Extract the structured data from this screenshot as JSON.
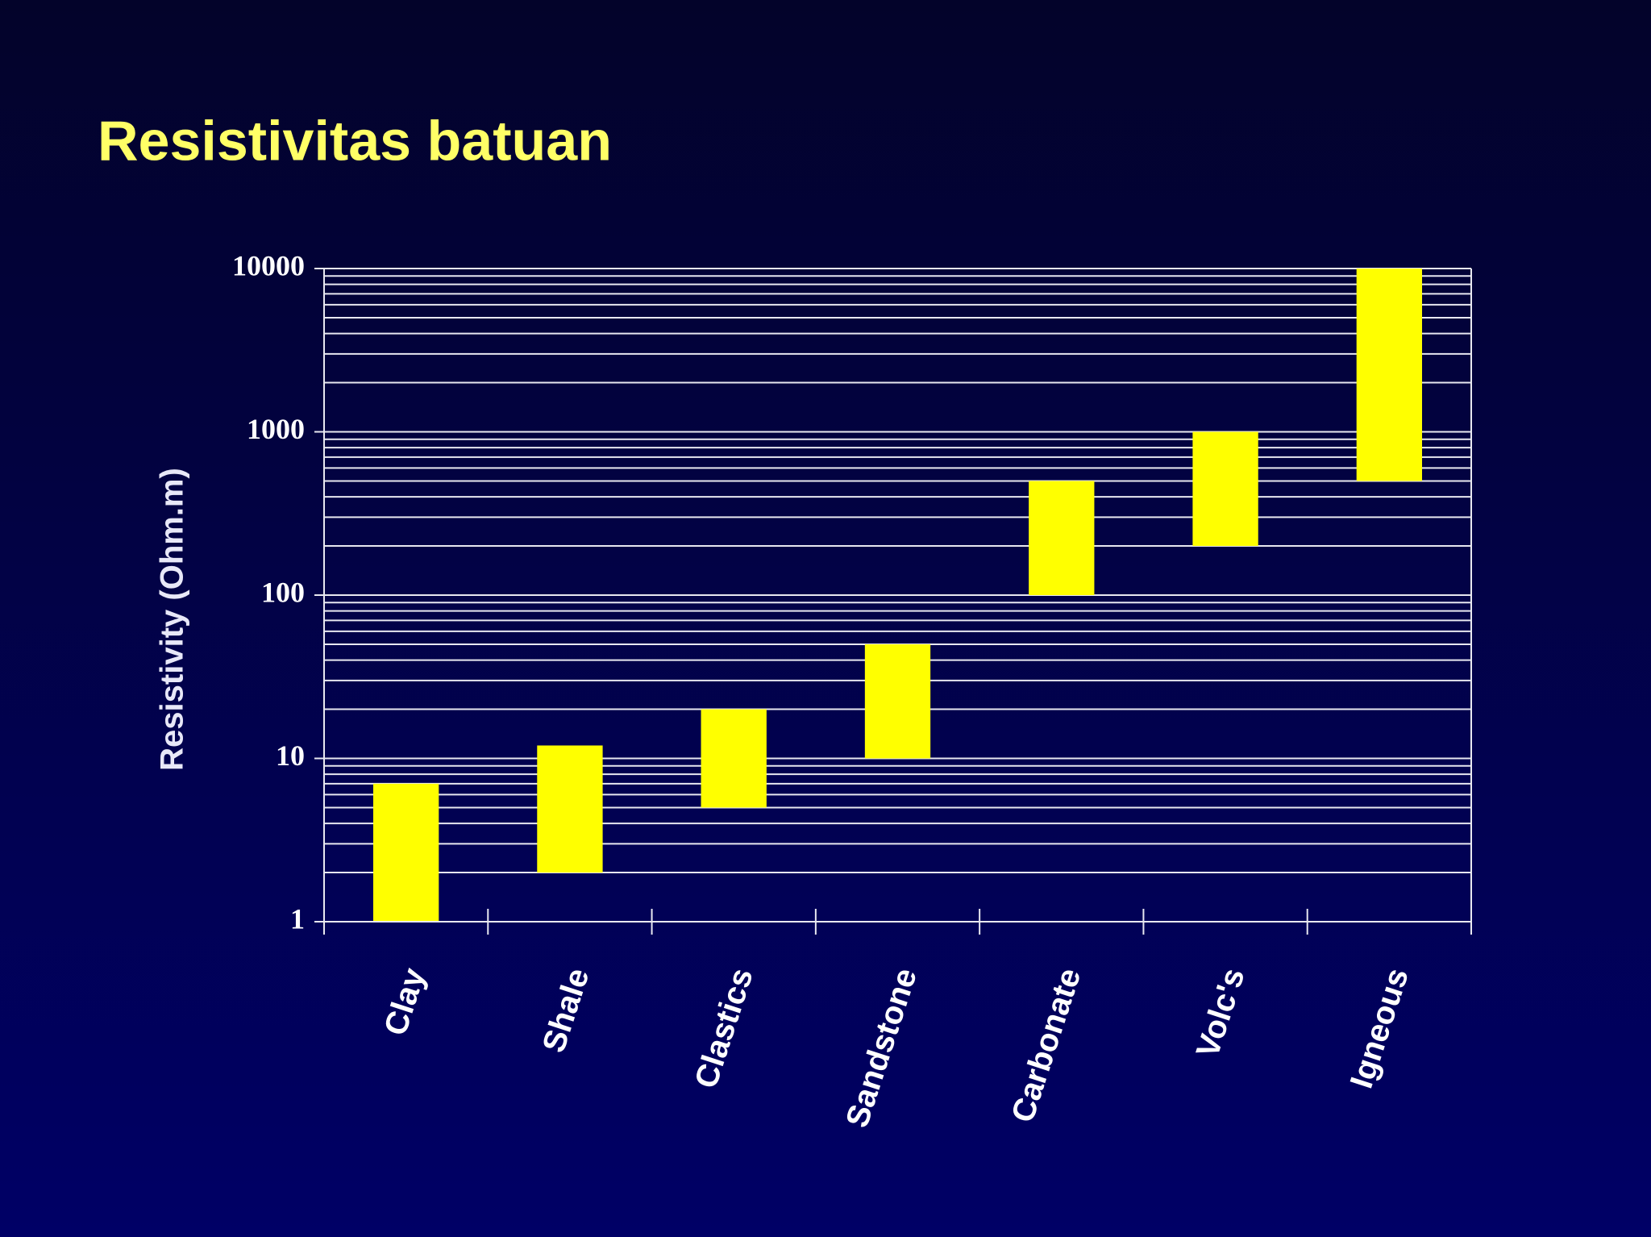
{
  "chart_data": {
    "type": "floating-bar",
    "title": "Resistivitas batuan",
    "y_label": "Resistivity (Ohm.m)",
    "categories": [
      "Clay",
      "Shale",
      "Clastics",
      "Sandstone",
      "Carbonate",
      "Volc's",
      "Igneous"
    ],
    "low": [
      1,
      2,
      5,
      10,
      100,
      200,
      500
    ],
    "high": [
      7,
      12,
      20,
      50,
      500,
      1000,
      10000
    ],
    "color": "#ffff00",
    "log_scale": true,
    "ylim": [
      1,
      10000
    ],
    "yticks": [
      1,
      10,
      100,
      1000,
      10000
    ],
    "minor_yticks": [
      2,
      3,
      4,
      5,
      6,
      7,
      8,
      9,
      20,
      30,
      40,
      50,
      60,
      70,
      80,
      90,
      200,
      300,
      400,
      500,
      600,
      700,
      800,
      900,
      2000,
      3000,
      4000,
      5000,
      6000,
      7000,
      8000,
      9000
    ],
    "grid": true
  }
}
